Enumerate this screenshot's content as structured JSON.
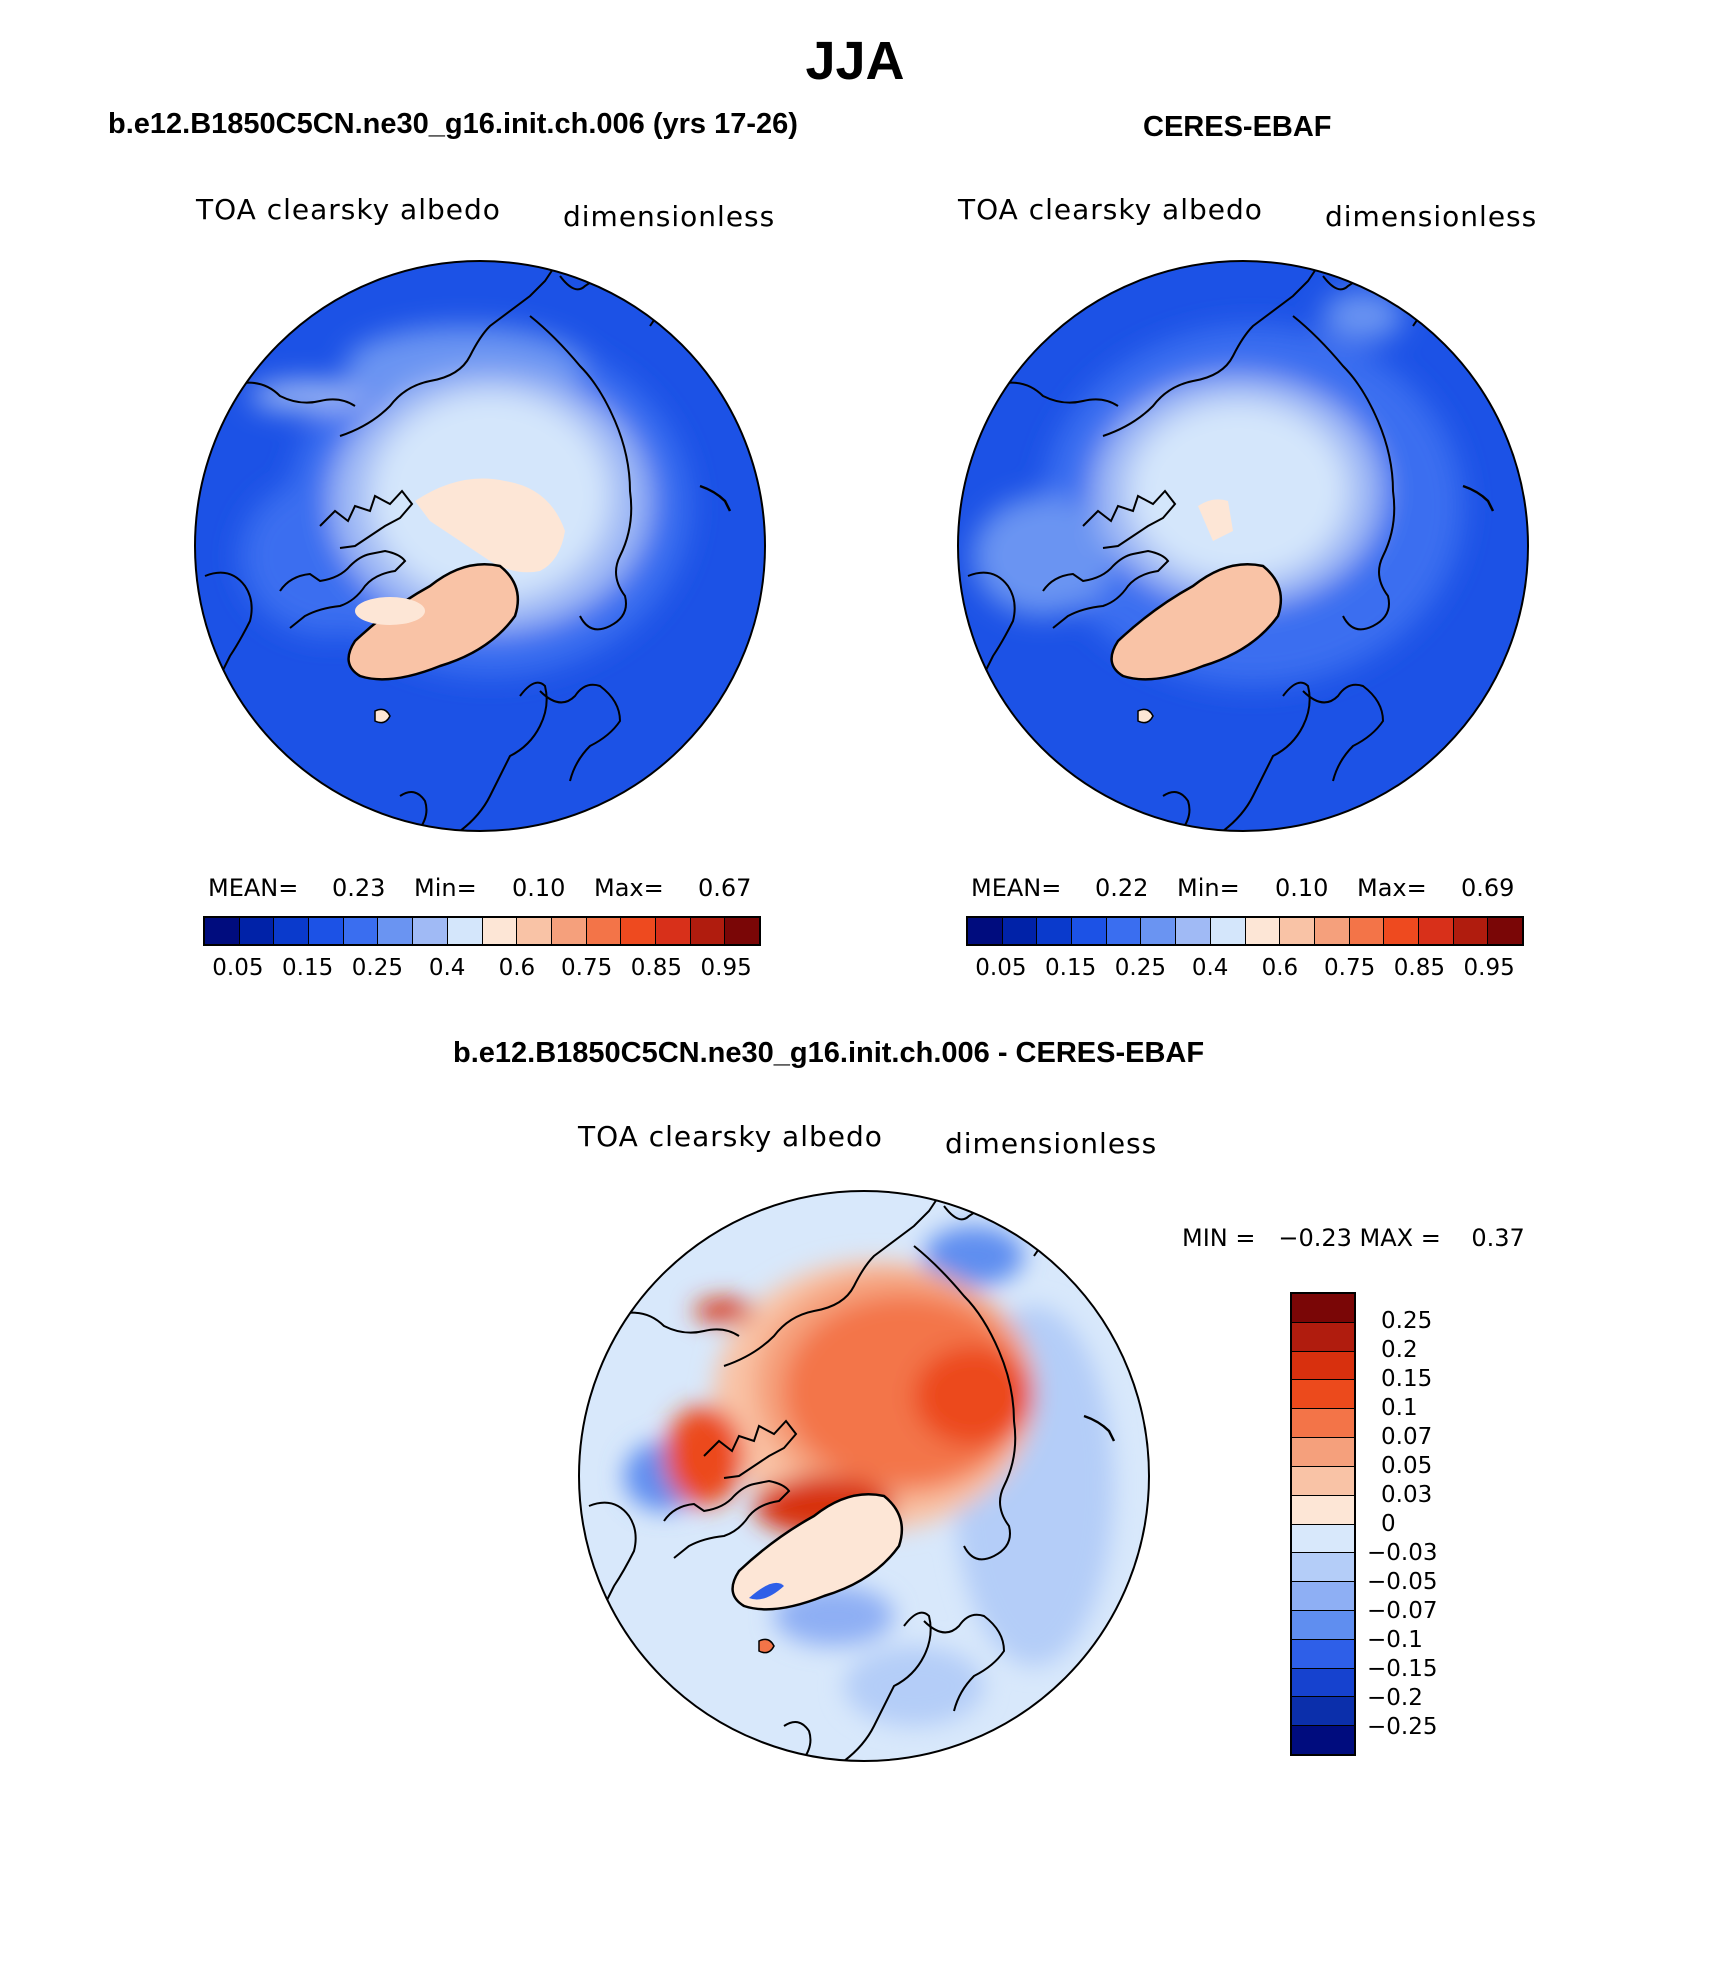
{
  "title": "JJA",
  "panels": {
    "model": {
      "title": "b.e12.B1850C5CN.ne30_g16.init.ch.006 (yrs 17-26)",
      "left_label": "TOA clearsky albedo",
      "right_label": "dimensionless",
      "stats": {
        "mean_label": "MEAN=",
        "mean": "0.23",
        "min_label": "Min=",
        "min": "0.10",
        "max_label": "Max=",
        "max": "0.67"
      }
    },
    "obs": {
      "title": "CERES-EBAF",
      "left_label": "TOA clearsky albedo",
      "right_label": "dimensionless",
      "stats": {
        "mean_label": "MEAN=",
        "mean": "0.22",
        "min_label": "Min=",
        "min": "0.10",
        "max_label": "Max=",
        "max": "0.69"
      }
    },
    "diff": {
      "title": "b.e12.B1850C5CN.ne30_g16.init.ch.006 - CERES-EBAF",
      "left_label": "TOA clearsky albedo",
      "right_label": "dimensionless",
      "minmax": "MIN =   −0.23 MAX =    0.37"
    }
  },
  "abs_colorbar": {
    "colors": [
      "#000c7e",
      "#0022a8",
      "#0a3acc",
      "#1c52e6",
      "#3a6ef0",
      "#6a94f2",
      "#a0baf5",
      "#d4e6fb",
      "#fde6d6",
      "#f9c3a6",
      "#f5a07c",
      "#f37448",
      "#ee4a1f",
      "#d8301a",
      "#b01c0e",
      "#7a0606"
    ],
    "ticks": [
      "0.05",
      "0.15",
      "0.25",
      "0.4",
      "0.6",
      "0.75",
      "0.85",
      "0.95"
    ]
  },
  "diff_colorbar": {
    "colors": [
      "#7a0606",
      "#b01c0e",
      "#d8300e",
      "#ec4a1c",
      "#f37448",
      "#f5a07c",
      "#f9c3a6",
      "#fde6d6",
      "#d8e8fb",
      "#b4cdf8",
      "#8eaff4",
      "#5f8ef0",
      "#2e5fe8",
      "#1642cf",
      "#0b2fab",
      "#000c7e"
    ],
    "ticks": [
      "0.25",
      "0.2",
      "0.15",
      "0.1",
      "0.07",
      "0.05",
      "0.03",
      "0",
      "−0.03",
      "−0.05",
      "−0.07",
      "−0.1",
      "−0.15",
      "−0.2",
      "−0.25"
    ]
  }
}
